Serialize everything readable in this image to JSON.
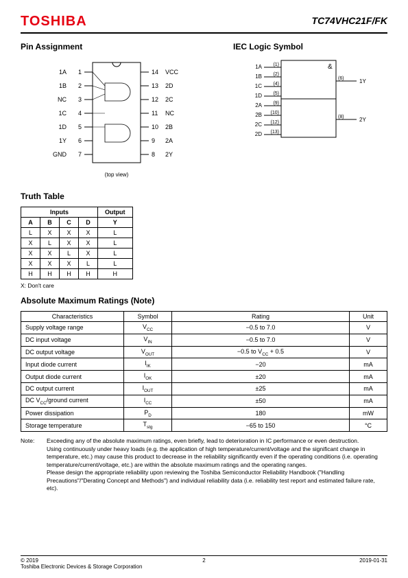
{
  "header": {
    "logo": "TOSHIBA",
    "part_number": "TC74VHC21F/FK"
  },
  "sections": {
    "pin_assignment_title": "Pin Assignment",
    "iec_title": "IEC Logic Symbol",
    "truth_title": "Truth Table",
    "ratings_title": "Absolute Maximum Ratings (Note)"
  },
  "pin_diagram": {
    "left_pins": [
      {
        "num": "1",
        "label": "1A"
      },
      {
        "num": "2",
        "label": "1B"
      },
      {
        "num": "3",
        "label": "NC"
      },
      {
        "num": "4",
        "label": "1C"
      },
      {
        "num": "5",
        "label": "1D"
      },
      {
        "num": "6",
        "label": "1Y"
      },
      {
        "num": "7",
        "label": "GND"
      }
    ],
    "right_pins": [
      {
        "num": "14",
        "label": "VCC"
      },
      {
        "num": "13",
        "label": "2D"
      },
      {
        "num": "12",
        "label": "2C"
      },
      {
        "num": "11",
        "label": "NC"
      },
      {
        "num": "10",
        "label": "2B"
      },
      {
        "num": "9",
        "label": "2A"
      },
      {
        "num": "8",
        "label": "2Y"
      }
    ],
    "top_view": "(top view)"
  },
  "iec_diagram": {
    "symbol": "&",
    "left_inputs": [
      {
        "pin": "(1)",
        "label": "1A"
      },
      {
        "pin": "(2)",
        "label": "1B"
      },
      {
        "pin": "(4)",
        "label": "1C"
      },
      {
        "pin": "(5)",
        "label": "1D"
      },
      {
        "pin": "(9)",
        "label": "2A"
      },
      {
        "pin": "(10)",
        "label": "2B"
      },
      {
        "pin": "(12)",
        "label": "2C"
      },
      {
        "pin": "(13)",
        "label": "2D"
      }
    ],
    "right_outputs": [
      {
        "pin": "(6)",
        "label": "1Y"
      },
      {
        "pin": "(8)",
        "label": "2Y"
      }
    ]
  },
  "truth_table": {
    "group_headers": [
      "Inputs",
      "Output"
    ],
    "columns": [
      "A",
      "B",
      "C",
      "D",
      "Y"
    ],
    "rows": [
      [
        "L",
        "X",
        "X",
        "X",
        "L"
      ],
      [
        "X",
        "L",
        "X",
        "X",
        "L"
      ],
      [
        "X",
        "X",
        "L",
        "X",
        "L"
      ],
      [
        "X",
        "X",
        "X",
        "L",
        "L"
      ],
      [
        "H",
        "H",
        "H",
        "H",
        "H"
      ]
    ],
    "note": "X: Don't care"
  },
  "ratings": {
    "columns": [
      "Characteristics",
      "Symbol",
      "Rating",
      "Unit"
    ],
    "rows": [
      {
        "char": "Supply voltage range",
        "sym": "V<sub>CC</sub>",
        "rating": "−0.5 to 7.0",
        "unit": "V"
      },
      {
        "char": "DC input voltage",
        "sym": "V<sub>IN</sub>",
        "rating": "−0.5 to 7.0",
        "unit": "V"
      },
      {
        "char": "DC output voltage",
        "sym": "V<sub>OUT</sub>",
        "rating": "−0.5 to V<sub>CC</sub> + 0.5",
        "unit": "V"
      },
      {
        "char": "Input diode current",
        "sym": "I<sub>IK</sub>",
        "rating": "−20",
        "unit": "mA"
      },
      {
        "char": "Output diode current",
        "sym": "I<sub>OK</sub>",
        "rating": "±20",
        "unit": "mA"
      },
      {
        "char": "DC output current",
        "sym": "I<sub>OUT</sub>",
        "rating": "±25",
        "unit": "mA"
      },
      {
        "char": "DC V<sub>CC</sub>/ground current",
        "sym": "I<sub>CC</sub>",
        "rating": "±50",
        "unit": "mA"
      },
      {
        "char": "Power dissipation",
        "sym": "P<sub>D</sub>",
        "rating": "180",
        "unit": "mW"
      },
      {
        "char": "Storage temperature",
        "sym": "T<sub>stg</sub>",
        "rating": "−65 to 150",
        "unit": "°C"
      }
    ],
    "col_widths": [
      "150px",
      "70px",
      "auto",
      "55px"
    ]
  },
  "note": {
    "label": "Note:",
    "text": "Exceeding any of the absolute maximum ratings, even briefly, lead to deterioration in IC performance or even destruction.\nUsing continuously under heavy loads (e.g. the application of high temperature/current/voltage and the significant change in temperature, etc.) may cause this product to decrease in the reliability significantly even if the operating conditions (i.e. operating temperature/current/voltage, etc.) are within the absolute maximum ratings and the operating ranges.\nPlease design the appropriate reliability upon reviewing the Toshiba Semiconductor Reliability Handbook (\"Handling Precautions\"/\"Derating Concept and Methods\") and individual reliability data (i.e. reliability test report and estimated failure rate, etc)."
  },
  "footer": {
    "copyright_line1": "© 2019",
    "copyright_line2": "Toshiba Electronic Devices & Storage Corporation",
    "page": "2",
    "date": "2019-01-31"
  },
  "colors": {
    "logo": "#e60012",
    "text": "#000000",
    "background": "#ffffff",
    "border": "#000000"
  }
}
